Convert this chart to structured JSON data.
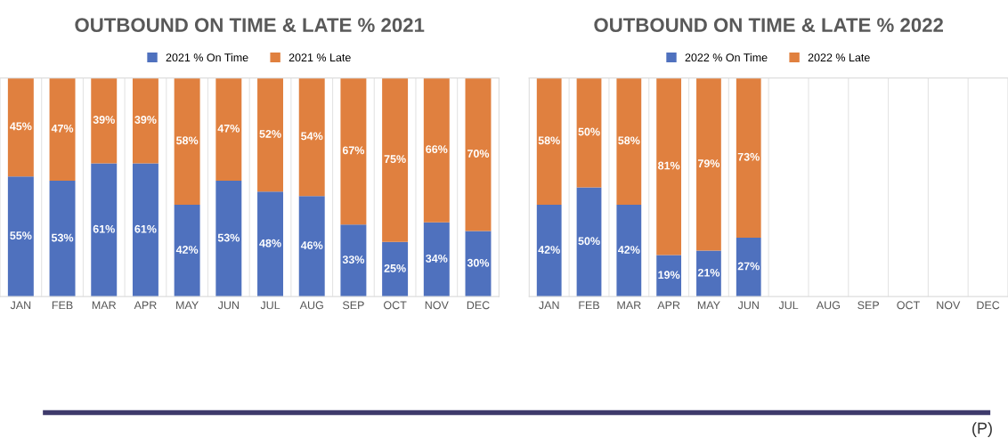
{
  "chart_data": [
    {
      "type": "bar",
      "title": "OUTBOUND ON TIME & LATE % 2021",
      "categories": [
        "JAN",
        "FEB",
        "MAR",
        "APR",
        "MAY",
        "JUN",
        "JUL",
        "AUG",
        "SEP",
        "OCT",
        "NOV",
        "DEC"
      ],
      "stacked": true,
      "tick_labels": "x",
      "legend": "top",
      "series": [
        {
          "name": "2021 % On Time",
          "color": "#4f71be",
          "values": [
            55,
            53,
            61,
            61,
            42,
            53,
            48,
            46,
            33,
            25,
            34,
            30
          ],
          "value_labels": [
            "55%",
            "53%",
            "61%",
            "61%",
            "42%",
            "53%",
            "48%",
            "46%",
            "33%",
            "25%",
            "34%",
            "30%"
          ]
        },
        {
          "name": "2021 % Late",
          "color": "#e0803f",
          "values": [
            45,
            47,
            39,
            39,
            58,
            47,
            52,
            54,
            67,
            75,
            66,
            70
          ],
          "value_labels": [
            "45%",
            "47%",
            "39%",
            "39%",
            "58%",
            "47%",
            "52%",
            "54%",
            "67%",
            "75%",
            "66%",
            "70%"
          ]
        }
      ]
    },
    {
      "type": "bar",
      "title": "OUTBOUND ON TIME & LATE % 2022",
      "categories": [
        "JAN",
        "FEB",
        "MAR",
        "APR",
        "MAY",
        "JUN",
        "JUL",
        "AUG",
        "SEP",
        "OCT",
        "NOV",
        "DEC"
      ],
      "stacked": true,
      "tick_labels": "x",
      "legend": "top",
      "annotations": [
        "(P)"
      ],
      "series": [
        {
          "name": "2022 % On Time",
          "color": "#4f71be",
          "values": [
            42,
            50,
            42,
            19,
            21,
            27,
            null,
            null,
            null,
            null,
            null,
            null
          ],
          "value_labels": [
            "42%",
            "50%",
            "42%",
            "19%",
            "21%",
            "27%",
            null,
            null,
            null,
            null,
            null,
            null
          ]
        },
        {
          "name": "2022 % Late",
          "color": "#e0803f",
          "values": [
            58,
            50,
            58,
            81,
            79,
            73,
            null,
            null,
            null,
            null,
            null,
            null
          ],
          "value_labels": [
            "58%",
            "50%",
            "58%",
            "81%",
            "79%",
            "73%",
            null,
            null,
            null,
            null,
            null,
            null
          ]
        }
      ]
    }
  ]
}
